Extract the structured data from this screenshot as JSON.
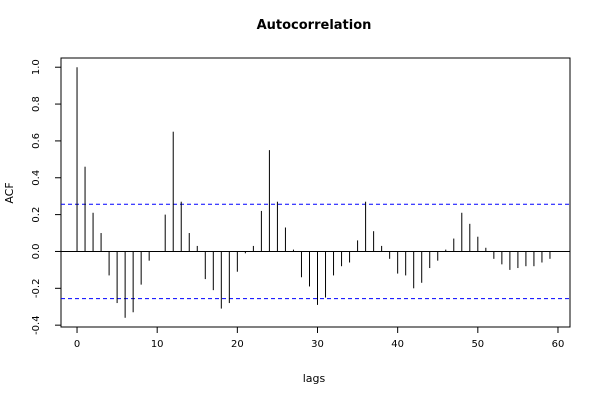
{
  "chart_data": {
    "type": "bar",
    "title": "Autocorrelation",
    "xlabel": "lags",
    "ylabel": "ACF",
    "xlim": [
      -2,
      61.5
    ],
    "ylim": [
      -0.41,
      1.05
    ],
    "x_ticks": [
      0,
      10,
      20,
      30,
      40,
      50,
      60
    ],
    "y_ticks": [
      -0.4,
      -0.2,
      0.0,
      0.2,
      0.4,
      0.6,
      0.8,
      1.0
    ],
    "x_tick_labels": [
      "0",
      "10",
      "20",
      "30",
      "40",
      "50",
      "60"
    ],
    "y_tick_labels": [
      "-0.4",
      "-0.2",
      "0.0",
      "0.2",
      "0.4",
      "0.6",
      "0.8",
      "1.0"
    ],
    "confidence_bounds": [
      0.256,
      -0.256
    ],
    "confidence_color": "#0000ff",
    "bar_color": "#000000",
    "grid": false,
    "lags": [
      0,
      1,
      2,
      3,
      4,
      5,
      6,
      7,
      8,
      9,
      10,
      11,
      12,
      13,
      14,
      15,
      16,
      17,
      18,
      19,
      20,
      21,
      22,
      23,
      24,
      25,
      26,
      27,
      28,
      29,
      30,
      31,
      32,
      33,
      34,
      35,
      36,
      37,
      38,
      39,
      40,
      41,
      42,
      43,
      44,
      45,
      46,
      47,
      48,
      49,
      50,
      51,
      52,
      53,
      54,
      55,
      56,
      57,
      58,
      59
    ],
    "values": [
      1.0,
      0.46,
      0.21,
      0.1,
      -0.13,
      -0.28,
      -0.36,
      -0.33,
      -0.18,
      -0.05,
      0.0,
      0.2,
      0.65,
      0.27,
      0.1,
      0.03,
      -0.15,
      -0.21,
      -0.31,
      -0.28,
      -0.11,
      -0.01,
      0.03,
      0.22,
      0.55,
      0.27,
      0.13,
      0.01,
      -0.14,
      -0.19,
      -0.29,
      -0.25,
      -0.13,
      -0.08,
      -0.06,
      0.06,
      0.27,
      0.11,
      0.03,
      -0.04,
      -0.12,
      -0.13,
      -0.2,
      -0.17,
      -0.09,
      -0.05,
      0.01,
      0.07,
      0.21,
      0.15,
      0.08,
      0.02,
      -0.04,
      -0.07,
      -0.1,
      -0.09,
      -0.08,
      -0.08,
      -0.06,
      -0.04
    ]
  }
}
